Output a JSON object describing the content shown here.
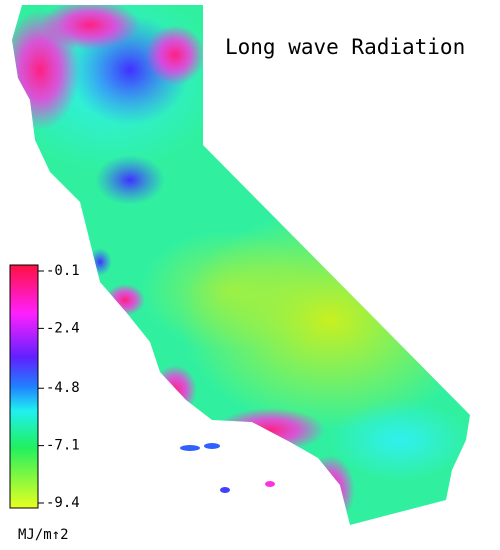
{
  "title": "Long wave Radiation",
  "colorbar": {
    "lim": [
      -0.1,
      -9.4
    ],
    "ticks": [
      -0.1,
      -2.4,
      -4.8,
      -7.1,
      -9.4
    ],
    "unit": "MJ/m↑2"
  }
}
